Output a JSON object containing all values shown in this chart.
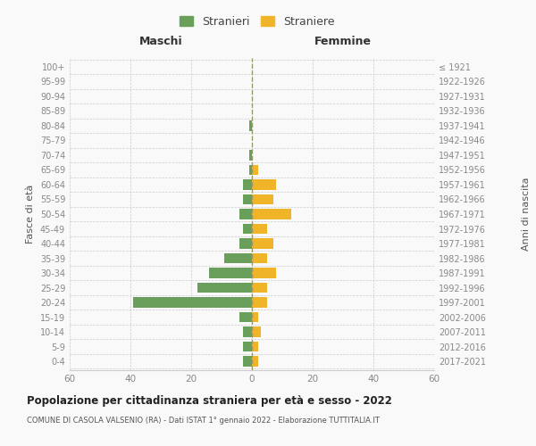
{
  "age_groups": [
    "0-4",
    "5-9",
    "10-14",
    "15-19",
    "20-24",
    "25-29",
    "30-34",
    "35-39",
    "40-44",
    "45-49",
    "50-54",
    "55-59",
    "60-64",
    "65-69",
    "70-74",
    "75-79",
    "80-84",
    "85-89",
    "90-94",
    "95-99",
    "100+"
  ],
  "birth_years": [
    "2017-2021",
    "2012-2016",
    "2007-2011",
    "2002-2006",
    "1997-2001",
    "1992-1996",
    "1987-1991",
    "1982-1986",
    "1977-1981",
    "1972-1976",
    "1967-1971",
    "1962-1966",
    "1957-1961",
    "1952-1956",
    "1947-1951",
    "1942-1946",
    "1937-1941",
    "1932-1936",
    "1927-1931",
    "1922-1926",
    "≤ 1921"
  ],
  "maschi": [
    3,
    3,
    3,
    4,
    39,
    18,
    14,
    9,
    4,
    3,
    4,
    3,
    3,
    1,
    1,
    0,
    1,
    0,
    0,
    0,
    0
  ],
  "femmine": [
    2,
    2,
    3,
    2,
    5,
    5,
    8,
    5,
    7,
    5,
    13,
    7,
    8,
    2,
    0,
    0,
    0,
    0,
    0,
    0,
    0
  ],
  "color_maschi": "#6a9e5b",
  "color_femmine": "#f0b429",
  "title": "Popolazione per cittadinanza straniera per età e sesso - 2022",
  "subtitle": "COMUNE DI CASOLA VALSENIO (RA) - Dati ISTAT 1° gennaio 2022 - Elaborazione TUTTITALIA.IT",
  "xlabel_left": "Maschi",
  "xlabel_right": "Femmine",
  "ylabel_left": "Fasce di età",
  "ylabel_right": "Anni di nascita",
  "xlim": 60,
  "legend_stranieri": "Stranieri",
  "legend_straniere": "Straniere",
  "bg_color": "#f9f9f9",
  "grid_color": "#cccccc",
  "axis_label_color": "#555555",
  "tick_label_color": "#888888"
}
